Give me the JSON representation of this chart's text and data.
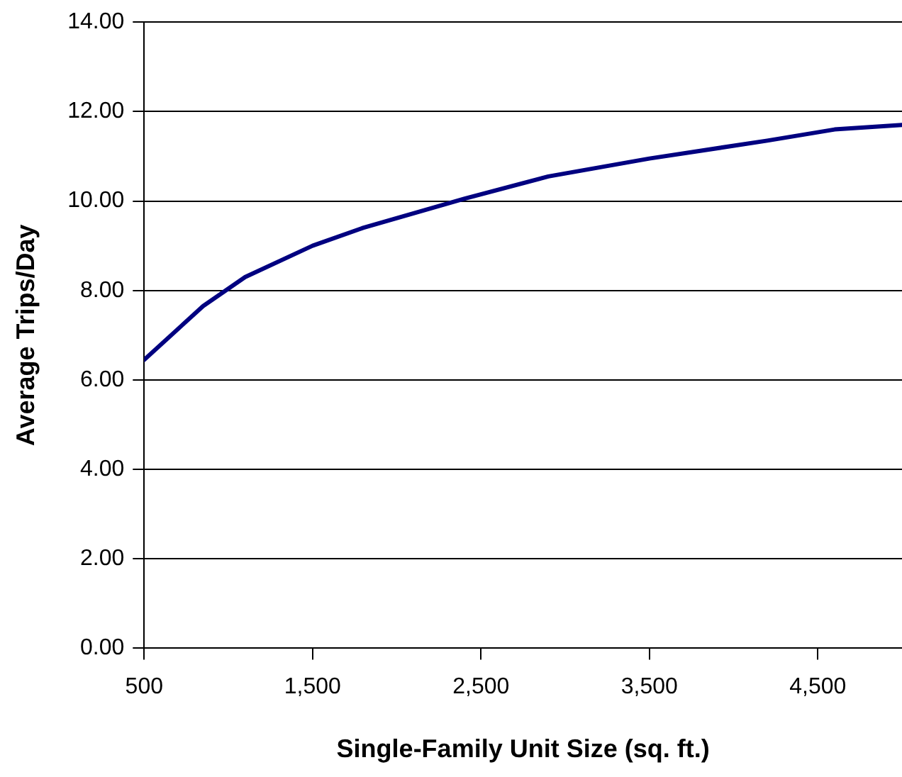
{
  "chart_data": {
    "type": "line",
    "xlabel": "Single-Family Unit Size (sq. ft.)",
    "ylabel": "Average Trips/Day",
    "x": [
      500,
      850,
      1100,
      1500,
      1800,
      2400,
      2900,
      3500,
      4200,
      4600,
      5000
    ],
    "series": [
      {
        "color": "#000080",
        "values": [
          6.45,
          7.65,
          8.3,
          9.0,
          9.4,
          10.05,
          10.55,
          10.95,
          11.35,
          11.6,
          11.7
        ]
      }
    ],
    "xlim": [
      500,
      5000
    ],
    "xticks": [
      {
        "value": 500,
        "label": "500"
      },
      {
        "value": 1500,
        "label": "1,500"
      },
      {
        "value": 2500,
        "label": "2,500"
      },
      {
        "value": 3500,
        "label": "3,500"
      },
      {
        "value": 4500,
        "label": "4,500"
      }
    ],
    "ylim": [
      0,
      14
    ],
    "yticks": [
      {
        "value": 0,
        "label": "0.00"
      },
      {
        "value": 2,
        "label": "2.00"
      },
      {
        "value": 4,
        "label": "4.00"
      },
      {
        "value": 6,
        "label": "6.00"
      },
      {
        "value": 8,
        "label": "8.00"
      },
      {
        "value": 10,
        "label": "10.00"
      },
      {
        "value": 12,
        "label": "12.00"
      },
      {
        "value": 14,
        "label": "14.00"
      }
    ],
    "grid": "y",
    "legend": false,
    "marker": "none",
    "line_style": "solid"
  }
}
